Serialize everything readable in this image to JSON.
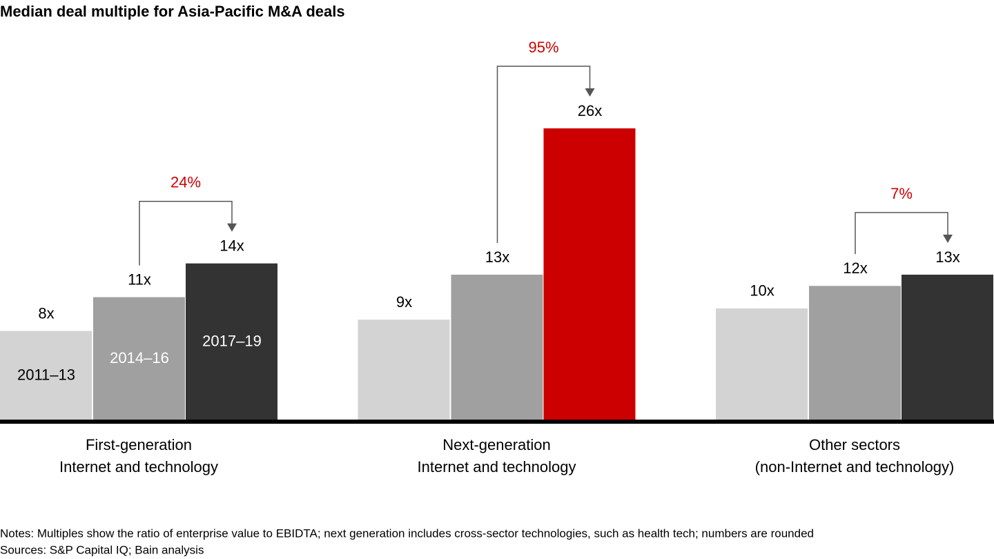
{
  "chart_data": {
    "type": "bar",
    "title": "Median deal multiple for Asia-Pacific M&A deals",
    "categories": [
      [
        "First-generation",
        "Internet and technology"
      ],
      [
        "Next-generation",
        "Internet and technology"
      ],
      [
        "Other sectors",
        "(non-Internet and technology)"
      ]
    ],
    "series": [
      {
        "name": "2011–13",
        "color": "#d3d3d3",
        "label_color": "#000000",
        "values": [
          8,
          9,
          10
        ],
        "value_labels": [
          "8x",
          "9x",
          "10x"
        ]
      },
      {
        "name": "2014–16",
        "color": "#a0a0a0",
        "label_color": "#ffffff",
        "values": [
          11,
          13,
          12
        ],
        "value_labels": [
          "11x",
          "13x",
          "12x"
        ]
      },
      {
        "name": "2017–19",
        "color": "#333333",
        "label_color": "#ffffff",
        "values": [
          14,
          26,
          13
        ],
        "value_labels": [
          "14x",
          "26x",
          "13x"
        ],
        "colors": [
          "#333333",
          "#cc0000",
          "#333333"
        ]
      }
    ],
    "growth_annotations": [
      {
        "value": 24,
        "label": "24%"
      },
      {
        "value": 95,
        "label": "95%"
      },
      {
        "value": 7,
        "label": "7%"
      }
    ],
    "annotation_color": "#cc0000",
    "notes": "Notes: Multiples show the ratio of enterprise value to EBIDTA; next generation includes cross-sector technologies, such as health tech; numbers are rounded",
    "sources": "Sources: S&P Capital IQ; Bain analysis"
  }
}
